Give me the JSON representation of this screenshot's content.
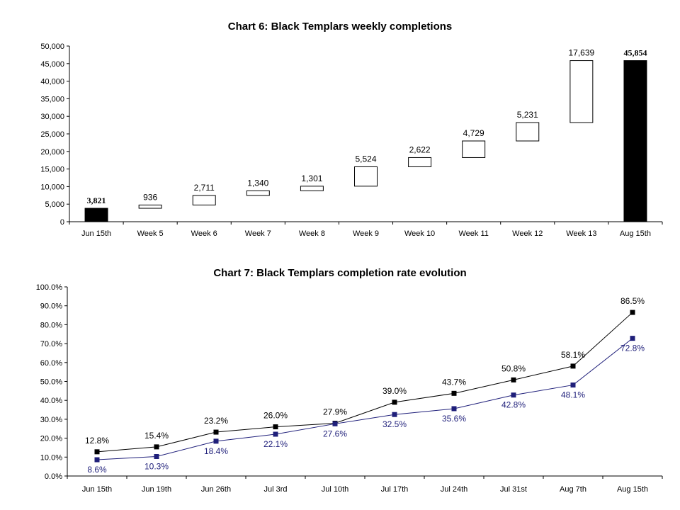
{
  "chart_data": [
    {
      "type": "waterfall",
      "title": "Chart 6: Black Templars weekly completions",
      "categories": [
        "Jun 15th",
        "Week 5",
        "Week 6",
        "Week 7",
        "Week 8",
        "Week 9",
        "Week 10",
        "Week 11",
        "Week 12",
        "Week 13",
        "Aug 15th"
      ],
      "values": [
        3821,
        936,
        2711,
        1340,
        1301,
        5524,
        2622,
        4729,
        5231,
        17639,
        45854
      ],
      "labels": [
        "3,821",
        "936",
        "2,711",
        "1,340",
        "1,301",
        "5,524",
        "2,622",
        "4,729",
        "5,231",
        "17,639",
        "45,854"
      ],
      "bar_kinds": [
        "total",
        "delta",
        "delta",
        "delta",
        "delta",
        "delta",
        "delta",
        "delta",
        "delta",
        "delta",
        "total"
      ],
      "yticks": [
        "0",
        "5,000",
        "10,000",
        "15,000",
        "20,000",
        "25,000",
        "30,000",
        "35,000",
        "40,000",
        "45,000",
        "50,000"
      ],
      "ylim": [
        0,
        50000
      ],
      "colors": {
        "total": "#000000",
        "delta": "#ffffff"
      }
    },
    {
      "type": "line",
      "title": "Chart 7: Black Templars completion rate evolution",
      "categories": [
        "Jun 15th",
        "Jun 19th",
        "Jun 26th",
        "Jul 3rd",
        "Jul 10th",
        "Jul 17th",
        "Jul 24th",
        "Jul 31st",
        "Aug 7th",
        "Aug 15th"
      ],
      "series": [
        {
          "values": [
            12.8,
            15.4,
            23.2,
            26.0,
            27.9,
            39.0,
            43.7,
            50.8,
            58.1,
            86.5
          ],
          "labels": [
            "12.8%",
            "15.4%",
            "23.2%",
            "26.0%",
            "27.9%",
            "39.0%",
            "43.7%",
            "50.8%",
            "58.1%",
            "86.5%"
          ],
          "color": "#000000"
        },
        {
          "values": [
            8.6,
            10.3,
            18.4,
            22.1,
            27.6,
            32.5,
            35.6,
            42.8,
            48.1,
            72.8
          ],
          "labels": [
            "8.6%",
            "10.3%",
            "18.4%",
            "22.1%",
            "27.6%",
            "32.5%",
            "35.6%",
            "42.8%",
            "48.1%",
            "72.8%"
          ],
          "color": "#1f1f7a"
        }
      ],
      "yticks": [
        "0.0%",
        "10.0%",
        "20.0%",
        "30.0%",
        "40.0%",
        "50.0%",
        "60.0%",
        "70.0%",
        "80.0%",
        "90.0%",
        "100.0%"
      ],
      "ylim": [
        0,
        100
      ]
    }
  ]
}
